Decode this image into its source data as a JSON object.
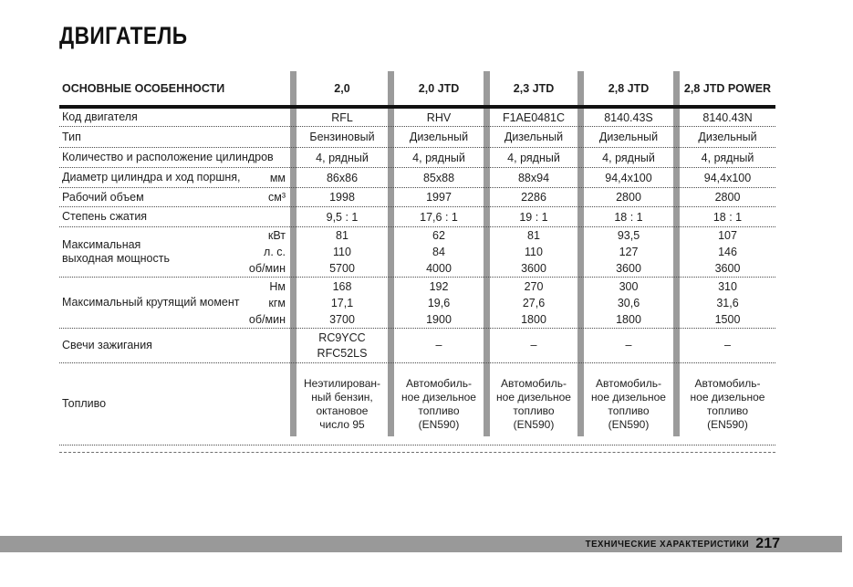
{
  "page": {
    "title": "ДВИГАТЕЛЬ",
    "footer": {
      "label": "ТЕХНИЧЕСКИЕ ХАРАКТЕРИСТИКИ",
      "page_number": "217"
    }
  },
  "colors": {
    "column_bar_gray": "#9b9b9b",
    "footer_bar_gray": "#999999",
    "text": "#1f1f1f"
  },
  "table": {
    "header": {
      "features_label": "ОСНОВНЫЕ ОСОБЕННОСТИ",
      "columns": [
        "2,0",
        "2,0 JTD",
        "2,3 JTD",
        "2,8 JTD",
        "2,8 JTD POWER"
      ]
    },
    "rows": [
      {
        "label_lines": [
          "Код двигателя"
        ],
        "units": [],
        "cells": [
          [
            "RFL"
          ],
          [
            "RHV"
          ],
          [
            "F1AE0481C"
          ],
          [
            "8140.43S"
          ],
          [
            "8140.43N"
          ]
        ]
      },
      {
        "label_lines": [
          "Тип"
        ],
        "units": [],
        "cells": [
          [
            "Бензиновый"
          ],
          [
            "Дизельный"
          ],
          [
            "Дизельный"
          ],
          [
            "Дизельный"
          ],
          [
            "Дизельный"
          ]
        ]
      },
      {
        "label_lines": [
          "Количество и расположение цилиндров"
        ],
        "units": [],
        "cells": [
          [
            "4, рядный"
          ],
          [
            "4, рядный"
          ],
          [
            "4, рядный"
          ],
          [
            "4, рядный"
          ],
          [
            "4, рядный"
          ]
        ]
      },
      {
        "label_lines": [
          "Диаметр цилиндра и ход поршня,"
        ],
        "units": [
          "мм"
        ],
        "cells": [
          [
            "86x86"
          ],
          [
            "85x88"
          ],
          [
            "88x94"
          ],
          [
            "94,4x100"
          ],
          [
            "94,4x100"
          ]
        ]
      },
      {
        "label_lines": [
          "Рабочий объем"
        ],
        "units": [
          "см³"
        ],
        "cells": [
          [
            "1998"
          ],
          [
            "1997"
          ],
          [
            "2286"
          ],
          [
            "2800"
          ],
          [
            "2800"
          ]
        ]
      },
      {
        "label_lines": [
          "Степень сжатия"
        ],
        "units": [],
        "cells": [
          [
            "9,5 : 1"
          ],
          [
            "17,6 : 1"
          ],
          [
            "19 : 1"
          ],
          [
            "18 : 1"
          ],
          [
            "18 : 1"
          ]
        ]
      },
      {
        "label_lines": [
          "Максимальная",
          "выходная мощность"
        ],
        "units": [
          "кВт",
          "л. с.",
          "об/мин"
        ],
        "cells": [
          [
            "81",
            "110",
            "5700"
          ],
          [
            "62",
            "84",
            "4000"
          ],
          [
            "81",
            "110",
            "3600"
          ],
          [
            "93,5",
            "127",
            "3600"
          ],
          [
            "107",
            "146",
            "3600"
          ]
        ]
      },
      {
        "label_lines": [
          "Максимальный крутящий момент"
        ],
        "units": [
          "Нм",
          "кгм",
          "об/мин"
        ],
        "cells": [
          [
            "168",
            "17,1",
            "3700"
          ],
          [
            "192",
            "19,6",
            "1900"
          ],
          [
            "270",
            "27,6",
            "1800"
          ],
          [
            "300",
            "30,6",
            "1800"
          ],
          [
            "310",
            "31,6",
            "1500"
          ]
        ]
      },
      {
        "label_lines": [
          "Свечи зажигания"
        ],
        "units": [],
        "cells": [
          [
            "RC9YCC",
            "RFC52LS"
          ],
          [
            "–"
          ],
          [
            "–"
          ],
          [
            "–"
          ],
          [
            "–"
          ]
        ]
      },
      {
        "label_lines": [
          "Топливо"
        ],
        "units": [],
        "cells": [
          [
            "Неэтилирован-",
            "ный бензин,",
            "октановое",
            "число 95"
          ],
          [
            "Автомобиль-",
            "ное дизельное",
            "топливо",
            "(EN590)"
          ],
          [
            "Автомобиль-",
            "ное дизельное",
            "топливо",
            "(EN590)"
          ],
          [
            "Автомобиль-",
            "ное дизельное",
            "топливо",
            "(EN590)"
          ],
          [
            "Автомобиль-",
            "ное дизельное",
            "топливо",
            "(EN590)"
          ]
        ]
      }
    ]
  }
}
